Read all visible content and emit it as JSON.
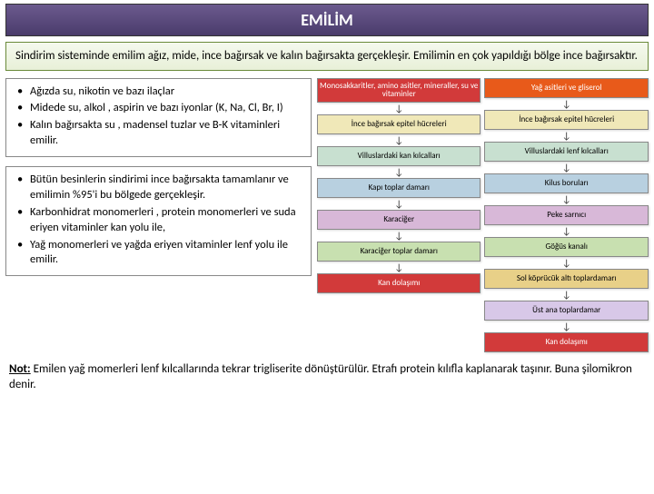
{
  "title": "EMİLİM",
  "intro": "Sindirim sisteminde emilim ağız, mide, ince bağırsak ve kalın bağırsakta gerçekleşir. Emilimin en çok yapıldığı bölge ince bağırsaktır.",
  "box1": [
    "Ağızda su, nikotin ve bazı ilaçlar",
    "Midede su, alkol , aspirin ve bazı iyonlar (K, Na, Cl, Br, I)",
    "Kalın bağırsakta su , madensel tuzlar ve B-K vitaminleri emilir."
  ],
  "box2": [
    "Bütün besinlerin sindirimi ince bağırsakta tamamlanır ve emilimin %95'i bu bölgede gerçekleşir.",
    "Karbonhidrat monomerleri , protein monomerleri ve suda eriyen vitaminler kan yolu ile,",
    "Yağ monomerleri ve yağda eriyen vitaminler lenf yolu ile emilir."
  ],
  "left_flow": [
    {
      "label": "Monosakkaritler, amino asitler, mineraller, su ve vitaminler",
      "bg": "#d23a3a",
      "fg": "#ffffff"
    },
    {
      "label": "İnce bağırsak epitel hücreleri",
      "bg": "#f0e8b8",
      "fg": "#000000"
    },
    {
      "label": "Villuslardaki kan kılcalları",
      "bg": "#c8e0d0",
      "fg": "#000000"
    },
    {
      "label": "Kapı toplar damarı",
      "bg": "#b8d0e0",
      "fg": "#000000"
    },
    {
      "label": "Karaciğer",
      "bg": "#d8b8d8",
      "fg": "#000000"
    },
    {
      "label": "Karaciğer toplar damarı",
      "bg": "#c8e0b0",
      "fg": "#000000"
    },
    {
      "label": "Kan dolaşımı",
      "bg": "#d23a3a",
      "fg": "#ffffff"
    }
  ],
  "right_flow": [
    {
      "label": "Yağ asitleri ve gliserol",
      "bg": "#e85a1a",
      "fg": "#ffffff"
    },
    {
      "label": "İnce bağırsak epitel hücreleri",
      "bg": "#f0e8b8",
      "fg": "#000000"
    },
    {
      "label": "Villuslardaki lenf kılcalları",
      "bg": "#c8e0d0",
      "fg": "#000000"
    },
    {
      "label": "Kilus boruları",
      "bg": "#b8d0e0",
      "fg": "#000000"
    },
    {
      "label": "Peke sarnıcı",
      "bg": "#d8b8d8",
      "fg": "#000000"
    },
    {
      "label": "Göğüs kanalı",
      "bg": "#c8e0b0",
      "fg": "#000000"
    },
    {
      "label": "Sol köprücük altı toplardamarı",
      "bg": "#e8d088",
      "fg": "#000000"
    },
    {
      "label": "Üst ana toplardamar",
      "bg": "#d8c8e8",
      "fg": "#000000"
    },
    {
      "label": "Kan dolaşımı",
      "bg": "#d23a3a",
      "fg": "#ffffff"
    }
  ],
  "note_label": "Not:",
  "note_text": " Emilen yağ momerleri lenf kılcallarında tekrar trigliserite dönüştürülür. Etrafı protein kılıfla kaplanarak taşınır. Buna şilomikron denir."
}
